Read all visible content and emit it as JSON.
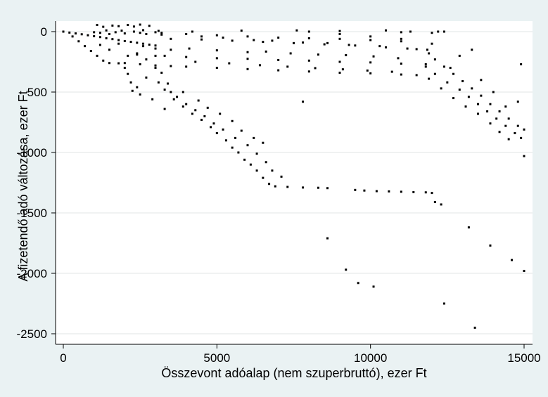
{
  "chart_data": {
    "type": "scatter",
    "title": "",
    "xlabel": "Összevont adóalap (nem szuperbruttó), ezer Ft",
    "ylabel": "A fizetendő adó változása, ezer Ft",
    "xlim": [
      -300,
      15200
    ],
    "ylim": [
      -2560,
      110
    ],
    "xticks": [
      0,
      5000,
      10000,
      15000
    ],
    "xtick_labels": [
      "0",
      "5000",
      "10000",
      "15000"
    ],
    "yticks": [
      0,
      -500,
      -1000,
      -1500,
      -2000,
      -2500
    ],
    "ytick_labels": [
      "0",
      "-500",
      "-1000",
      "-1500",
      "-2000",
      "-2500"
    ],
    "grid": "horizontal",
    "legend": "none",
    "marker_color": "#000000",
    "background_color": "#eaf2f3",
    "plot_background_color": "#ffffff",
    "series": [
      {
        "points": [
          [
            0,
            0
          ],
          [
            200,
            -8
          ],
          [
            400,
            -15
          ],
          [
            600,
            -22
          ],
          [
            800,
            -30
          ],
          [
            1000,
            -38
          ],
          [
            1200,
            -45
          ],
          [
            1400,
            -55
          ],
          [
            1600,
            -62
          ],
          [
            1800,
            -70
          ],
          [
            2000,
            -78
          ],
          [
            2200,
            -85
          ],
          [
            2400,
            -92
          ],
          [
            2600,
            -100
          ],
          [
            2800,
            -108
          ],
          [
            3000,
            -115
          ],
          [
            300,
            -40
          ],
          [
            500,
            -80
          ],
          [
            700,
            -120
          ],
          [
            900,
            -160
          ],
          [
            1100,
            -200
          ],
          [
            1300,
            -240
          ],
          [
            1500,
            -260
          ],
          [
            1800,
            -262
          ],
          [
            1000,
            -5
          ],
          [
            1200,
            -10
          ],
          [
            1500,
            -20
          ],
          [
            1700,
            -5
          ],
          [
            2000,
            -15
          ],
          [
            2300,
            0
          ],
          [
            2500,
            -10
          ],
          [
            2700,
            -20
          ],
          [
            3000,
            -5
          ],
          [
            3200,
            -25
          ],
          [
            1400,
            10
          ],
          [
            1900,
            8
          ],
          [
            2600,
            12
          ],
          [
            3100,
            6
          ],
          [
            1100,
            55
          ],
          [
            1300,
            40
          ],
          [
            1600,
            50
          ],
          [
            1800,
            45
          ],
          [
            2100,
            55
          ],
          [
            2300,
            42
          ],
          [
            2500,
            58
          ],
          [
            2800,
            48
          ],
          [
            1200,
            -110
          ],
          [
            1500,
            -150
          ],
          [
            1800,
            -100
          ],
          [
            2100,
            -200
          ],
          [
            2400,
            -180
          ],
          [
            2700,
            -230
          ],
          [
            3000,
            -140
          ],
          [
            3300,
            -200
          ],
          [
            2600,
            -120
          ],
          [
            3500,
            -150
          ],
          [
            2000,
            -300
          ],
          [
            2100,
            -350
          ],
          [
            2200,
            -420
          ],
          [
            2250,
            -490
          ],
          [
            2400,
            -460
          ],
          [
            2500,
            -520
          ],
          [
            2700,
            -380
          ],
          [
            2900,
            -560
          ],
          [
            3100,
            -420
          ],
          [
            3300,
            -640
          ],
          [
            3500,
            -500
          ],
          [
            3000,
            -300
          ],
          [
            3200,
            -340
          ],
          [
            2000,
            -260
          ],
          [
            2500,
            -270
          ],
          [
            3000,
            -280
          ],
          [
            3500,
            -285
          ],
          [
            4000,
            -290
          ],
          [
            5000,
            -300
          ],
          [
            6000,
            -310
          ],
          [
            7000,
            -320
          ],
          [
            8000,
            -330
          ],
          [
            9000,
            -340
          ],
          [
            10000,
            -345
          ],
          [
            11000,
            -355
          ],
          [
            11500,
            -360
          ],
          [
            2400,
            -190
          ],
          [
            3000,
            -200
          ],
          [
            4000,
            -210
          ],
          [
            5000,
            -220
          ],
          [
            6000,
            -225
          ],
          [
            7000,
            -235
          ],
          [
            8000,
            -240
          ],
          [
            9000,
            -250
          ],
          [
            10000,
            -255
          ],
          [
            11000,
            -265
          ],
          [
            11800,
            -270
          ],
          [
            3500,
            -60
          ],
          [
            4500,
            -65
          ],
          [
            5500,
            -75
          ],
          [
            6500,
            -85
          ],
          [
            7500,
            -95
          ],
          [
            8500,
            -105
          ],
          [
            9500,
            -115
          ],
          [
            10500,
            -130
          ],
          [
            11500,
            -145
          ],
          [
            11850,
            -150
          ],
          [
            3200,
            -10
          ],
          [
            4000,
            -20
          ],
          [
            5000,
            -30
          ],
          [
            6000,
            -40
          ],
          [
            7000,
            -50
          ],
          [
            8000,
            -55
          ],
          [
            9000,
            -60
          ],
          [
            10000,
            -70
          ],
          [
            11000,
            -80
          ],
          [
            4200,
            0
          ],
          [
            5800,
            8
          ],
          [
            7600,
            10
          ],
          [
            9000,
            5
          ],
          [
            11000,
            -5
          ],
          [
            11300,
            0
          ],
          [
            12000,
            -10
          ],
          [
            4500,
            -40
          ],
          [
            5200,
            -50
          ],
          [
            6200,
            -70
          ],
          [
            6800,
            -75
          ],
          [
            7800,
            -90
          ],
          [
            8600,
            -95
          ],
          [
            9300,
            -110
          ],
          [
            10300,
            -120
          ],
          [
            11200,
            -140
          ],
          [
            4100,
            -140
          ],
          [
            5000,
            -155
          ],
          [
            6000,
            -170
          ],
          [
            6600,
            -165
          ],
          [
            7400,
            -180
          ],
          [
            8300,
            -190
          ],
          [
            9200,
            -195
          ],
          [
            10100,
            -205
          ],
          [
            10900,
            -220
          ],
          [
            4300,
            -250
          ],
          [
            5400,
            -262
          ],
          [
            6400,
            -278
          ],
          [
            7300,
            -290
          ],
          [
            8200,
            -302
          ],
          [
            9100,
            -312
          ],
          [
            9900,
            -322
          ],
          [
            10700,
            -332
          ],
          [
            3600,
            -560
          ],
          [
            3900,
            -620
          ],
          [
            4200,
            -680
          ],
          [
            4500,
            -730
          ],
          [
            4800,
            -790
          ],
          [
            5000,
            -840
          ],
          [
            5300,
            -900
          ],
          [
            5500,
            -960
          ],
          [
            5700,
            -1000
          ],
          [
            5900,
            -1060
          ],
          [
            6100,
            -1100
          ],
          [
            6300,
            -1150
          ],
          [
            6500,
            -1210
          ],
          [
            6700,
            -1260
          ],
          [
            6900,
            -1280
          ],
          [
            7300,
            -1285
          ],
          [
            7800,
            -1290
          ],
          [
            8300,
            -1292
          ],
          [
            8600,
            -1295
          ],
          [
            3300,
            -480
          ],
          [
            3700,
            -540
          ],
          [
            4000,
            -600
          ],
          [
            4300,
            -650
          ],
          [
            4600,
            -700
          ],
          [
            4900,
            -760
          ],
          [
            5200,
            -810
          ],
          [
            5600,
            -880
          ],
          [
            6000,
            -940
          ],
          [
            6300,
            -1010
          ],
          [
            6600,
            -1080
          ],
          [
            6800,
            -1150
          ],
          [
            7100,
            -1200
          ],
          [
            3400,
            -430
          ],
          [
            3900,
            -500
          ],
          [
            4400,
            -570
          ],
          [
            4700,
            -630
          ],
          [
            5100,
            -680
          ],
          [
            5500,
            -740
          ],
          [
            5800,
            -820
          ],
          [
            6200,
            -880
          ],
          [
            6500,
            -920
          ],
          [
            9500,
            -1310
          ],
          [
            9800,
            -1315
          ],
          [
            10200,
            -1320
          ],
          [
            10600,
            -1322
          ],
          [
            11000,
            -1325
          ],
          [
            11400,
            -1328
          ],
          [
            11800,
            -1330
          ],
          [
            12000,
            -1335
          ],
          [
            11900,
            -180
          ],
          [
            12100,
            -230
          ],
          [
            12400,
            -290
          ],
          [
            12700,
            -350
          ],
          [
            13000,
            -410
          ],
          [
            13300,
            -470
          ],
          [
            13600,
            -530
          ],
          [
            13900,
            -600
          ],
          [
            14200,
            -660
          ],
          [
            14500,
            -720
          ],
          [
            14800,
            -780
          ],
          [
            15000,
            -810
          ],
          [
            11800,
            -290
          ],
          [
            12100,
            -350
          ],
          [
            12500,
            -420
          ],
          [
            12900,
            -480
          ],
          [
            13200,
            -540
          ],
          [
            13500,
            -600
          ],
          [
            13800,
            -660
          ],
          [
            14100,
            -720
          ],
          [
            14400,
            -780
          ],
          [
            14700,
            -840
          ],
          [
            14900,
            -880
          ],
          [
            11900,
            -390
          ],
          [
            12300,
            -470
          ],
          [
            12700,
            -550
          ],
          [
            13100,
            -620
          ],
          [
            13500,
            -680
          ],
          [
            13900,
            -760
          ],
          [
            14200,
            -830
          ],
          [
            14500,
            -890
          ],
          [
            12600,
            -300
          ],
          [
            12900,
            -200
          ],
          [
            13300,
            -150
          ],
          [
            13600,
            -400
          ],
          [
            14000,
            -500
          ],
          [
            14400,
            -620
          ],
          [
            14800,
            -580
          ],
          [
            14900,
            -270
          ],
          [
            15000,
            -1030
          ],
          [
            7800,
            -580
          ],
          [
            8600,
            -1710
          ],
          [
            9200,
            -1970
          ],
          [
            9600,
            -2080
          ],
          [
            10100,
            -2110
          ],
          [
            12100,
            -1410
          ],
          [
            12300,
            -1430
          ],
          [
            12400,
            -2250
          ],
          [
            13200,
            -1620
          ],
          [
            13400,
            -2450
          ],
          [
            13900,
            -1770
          ],
          [
            14600,
            -1890
          ],
          [
            15000,
            -1980
          ],
          [
            8000,
            0
          ],
          [
            9000,
            -20
          ],
          [
            10000,
            -40
          ],
          [
            10500,
            10
          ],
          [
            11000,
            -60
          ],
          [
            12000,
            -100
          ],
          [
            12200,
            0
          ],
          [
            12400,
            0
          ]
        ]
      }
    ]
  }
}
